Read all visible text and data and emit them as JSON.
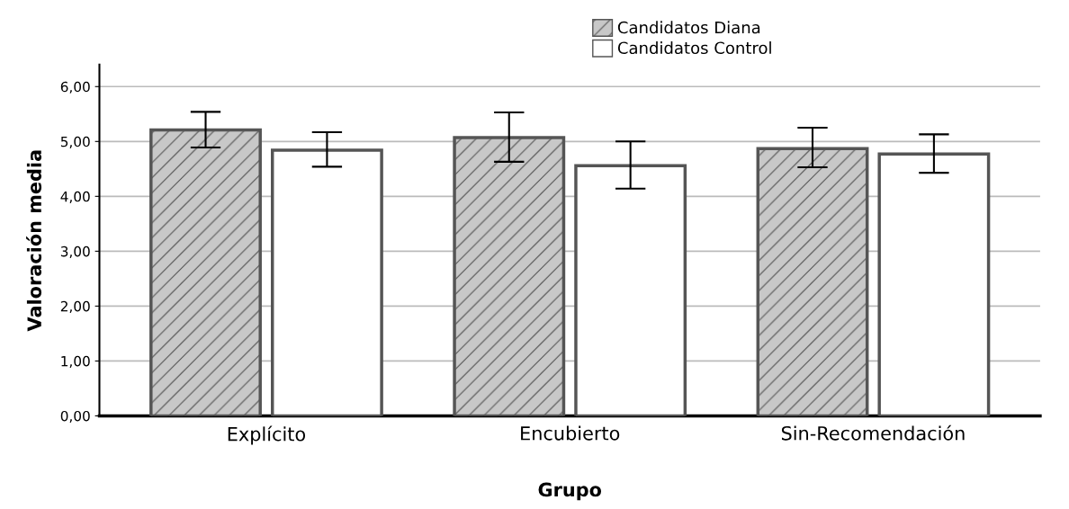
{
  "chart_data": {
    "type": "bar",
    "xlabel": "Grupo",
    "ylabel": "Valoración media",
    "categories": [
      "Explícito",
      "Encubierto",
      "Sin-Recomendación"
    ],
    "series": [
      {
        "name": "Candidatos Diana",
        "color": "#c8c8c8",
        "values": [
          5.21,
          5.07,
          4.87
        ],
        "errors": [
          [
            4.89,
            5.54
          ],
          [
            4.63,
            5.53
          ],
          [
            4.53,
            5.25
          ]
        ]
      },
      {
        "name": "Candidatos Control",
        "color": "#ffffff",
        "values": [
          4.84,
          4.56,
          4.77
        ],
        "errors": [
          [
            4.54,
            5.17
          ],
          [
            4.14,
            5.0
          ],
          [
            4.43,
            5.13
          ]
        ]
      }
    ],
    "ylim": [
      0,
      6.4
    ],
    "yticks": [
      {
        "value": 0,
        "label": "0,00"
      },
      {
        "value": 1,
        "label": "1,00"
      },
      {
        "value": 2,
        "label": "2,00"
      },
      {
        "value": 3,
        "label": "3,00"
      },
      {
        "value": 4,
        "label": "4,00"
      },
      {
        "value": 5,
        "label": "5,00"
      },
      {
        "value": 6,
        "label": "6,00"
      }
    ],
    "grid": "y",
    "legend": "top"
  }
}
